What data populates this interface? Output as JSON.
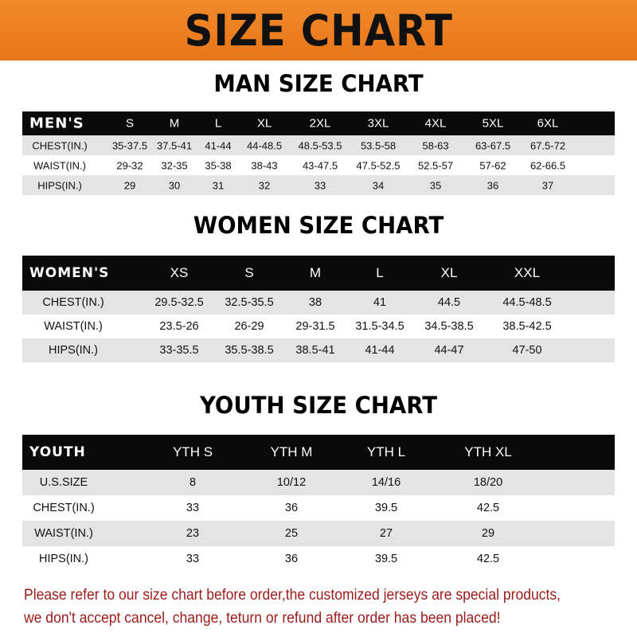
{
  "banner_title": "SIZE CHART",
  "men": {
    "title": "MAN SIZE CHART",
    "header": [
      "MEN'S",
      "S",
      "M",
      "L",
      "XL",
      "2XL",
      "3XL",
      "4XL",
      "5XL",
      "6XL"
    ],
    "rows": [
      [
        "CHEST(IN.)",
        "35-37.5",
        "37.5-41",
        "41-44",
        "44-48.5",
        "48.5-53.5",
        "53.5-58",
        "58-63",
        "63-67.5",
        "67.5-72"
      ],
      [
        "WAIST(IN.)",
        "29-32",
        "32-35",
        "35-38",
        "38-43",
        "43-47.5",
        "47.5-52.5",
        "52.5-57",
        "57-62",
        "62-66.5"
      ],
      [
        "HIPS(IN.)",
        "29",
        "30",
        "31",
        "32",
        "33",
        "34",
        "35",
        "36",
        "37"
      ]
    ]
  },
  "women": {
    "title": "WOMEN SIZE CHART",
    "header": [
      "WOMEN'S",
      "XS",
      "S",
      "M",
      "L",
      "XL",
      "XXL"
    ],
    "rows": [
      [
        "CHEST(IN.)",
        "29.5-32.5",
        "32.5-35.5",
        "38",
        "41",
        "44.5",
        "44.5-48.5"
      ],
      [
        "WAIST(IN.)",
        "23.5-26",
        "26-29",
        "29-31.5",
        "31.5-34.5",
        "34.5-38.5",
        "38.5-42.5"
      ],
      [
        "HIPS(IN.)",
        "33-35.5",
        "35.5-38.5",
        "38.5-41",
        "41-44",
        "44-47",
        "47-50"
      ]
    ]
  },
  "youth": {
    "title": "YOUTH SIZE CHART",
    "header": [
      "YOUTH",
      "YTH S",
      "YTH M",
      "YTH L",
      "YTH XL"
    ],
    "rows": [
      [
        "U.S.SIZE",
        "8",
        "10/12",
        "14/16",
        "18/20"
      ],
      [
        "CHEST(IN.)",
        "33",
        "36",
        "39.5",
        "42.5"
      ],
      [
        "WAIST(IN.)",
        "23",
        "25",
        "27",
        "29"
      ],
      [
        "HIPS(IN.)",
        "33",
        "36",
        "39.5",
        "42.5"
      ]
    ]
  },
  "note": {
    "line1": "Please refer to our size chart before order,the customized jerseys are special products,",
    "line2": "we don't accept cancel, change, teturn or refund after order has been placed!"
  },
  "colors": {
    "banner": "#ee8020",
    "header_row": "#0a0a0a",
    "stripe": "#e4e4e4",
    "note": "#9b1b1b"
  }
}
